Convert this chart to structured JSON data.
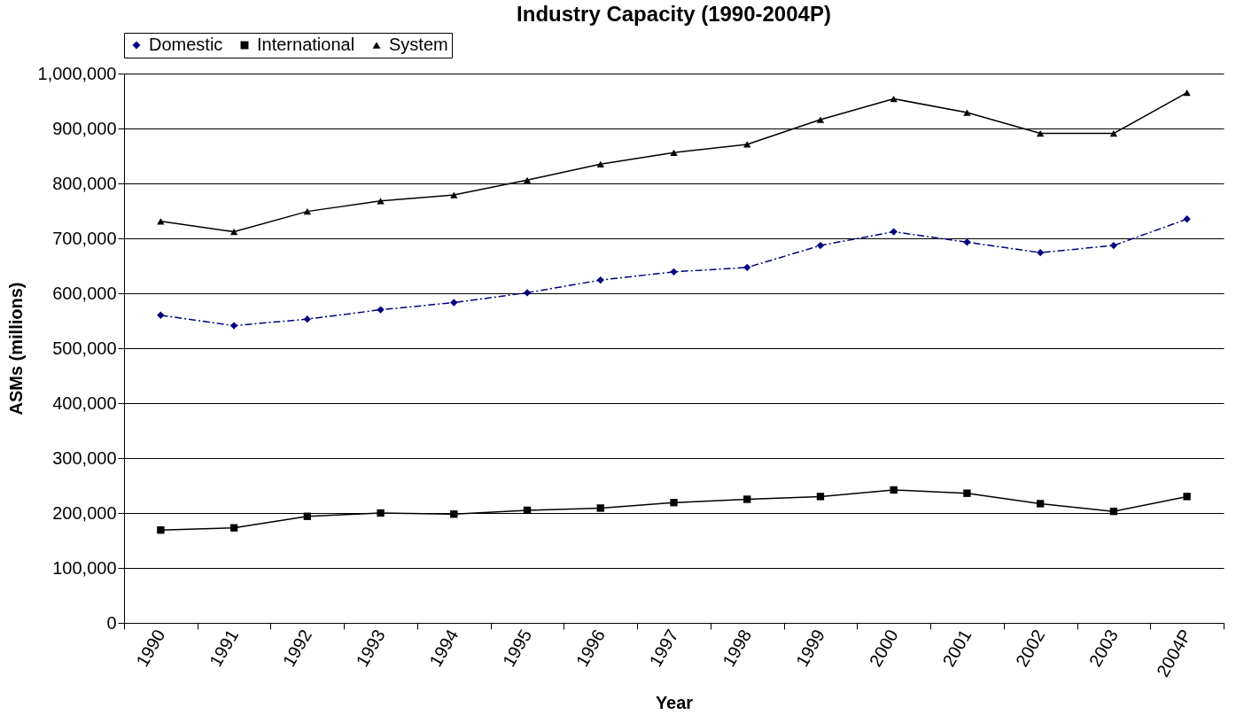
{
  "chart_data": {
    "type": "line",
    "title": "Industry Capacity (1990-2004P)",
    "xlabel": "Year",
    "ylabel": "ASMs (millions)",
    "categories": [
      "1990",
      "1991",
      "1992",
      "1993",
      "1994",
      "1995",
      "1996",
      "1997",
      "1998",
      "1999",
      "2000",
      "2001",
      "2002",
      "2003",
      "2004P"
    ],
    "series": [
      {
        "name": "Domestic",
        "color": "#000080",
        "marker": "diamond",
        "line_style": "dashed",
        "values": [
          560000,
          541000,
          553000,
          570000,
          583000,
          601000,
          624000,
          639000,
          647000,
          687000,
          712000,
          693000,
          674000,
          687000,
          735000
        ]
      },
      {
        "name": "International",
        "color": "#000000",
        "marker": "square",
        "line_style": "solid",
        "values": [
          169000,
          173000,
          194000,
          200000,
          198000,
          205000,
          209000,
          219000,
          225000,
          230000,
          242000,
          236000,
          217000,
          203000,
          230000
        ]
      },
      {
        "name": "System",
        "color": "#000000",
        "marker": "triangle",
        "line_style": "solid",
        "values": [
          731000,
          712000,
          749000,
          768000,
          779000,
          806000,
          835000,
          856000,
          871000,
          916000,
          954000,
          929000,
          891000,
          891000,
          965000
        ]
      }
    ],
    "ylim": [
      0,
      1000000
    ],
    "yticks": [
      0,
      {
        "value": 100000,
        "label": "100,000"
      },
      {
        "value": 200000,
        "label": "200,000"
      },
      {
        "value": 300000,
        "label": "300,000"
      },
      {
        "value": 400000,
        "label": "400,000"
      },
      {
        "value": 500000,
        "label": "500,000"
      },
      {
        "value": 600000,
        "label": "600,000"
      },
      {
        "value": 700000,
        "label": "700,000"
      },
      {
        "value": 800000,
        "label": "800,000"
      },
      {
        "value": 900000,
        "label": "900,000"
      },
      {
        "value": 1000000,
        "label": "1,000,000"
      }
    ],
    "grid": "y",
    "legend": "top"
  }
}
